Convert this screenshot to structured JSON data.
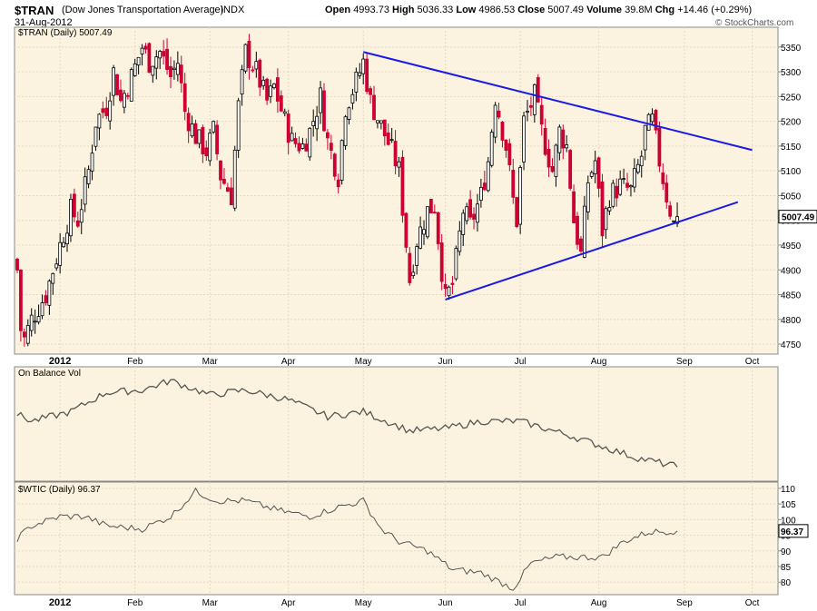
{
  "header": {
    "symbol": "$TRAN",
    "name": "(Dow Jones Transportation Average)",
    "exchange": "INDX",
    "date": "31-Aug-2012",
    "open_label": "Open",
    "open": "4993.73",
    "high_label": "High",
    "high": "5036.33",
    "low_label": "Low",
    "low": "4986.53",
    "close_label": "Close",
    "close": "5007.49",
    "volume_label": "Volume",
    "volume": "39.8M",
    "chg_label": "Chg",
    "chg": "+14.46 (+0.29%)",
    "credit": "© StockCharts.com"
  },
  "colors": {
    "panel_bg": "#fbf3df",
    "up_candle": "#000000",
    "down_candle": "#cc0033",
    "trendline": "#1a1ae6",
    "indicator_line": "#555555",
    "grid": "#e3d9c0"
  },
  "chart_data": [
    {
      "type": "candlestick",
      "label": "$TRAN (Daily) 5007.49",
      "last_value": "5007.49",
      "ylim": [
        4730,
        5390
      ],
      "yticks": [
        4750,
        4800,
        4850,
        4900,
        4950,
        5000,
        5050,
        5100,
        5150,
        5200,
        5250,
        5300,
        5350
      ],
      "xticks": [
        "2012",
        "Feb",
        "Mar",
        "Apr",
        "May",
        "Jun",
        "Jul",
        "Aug",
        "Sep",
        "Oct"
      ],
      "series_keyframes": [
        [
          "2011-12-16",
          4900
        ],
        [
          "2011-12-19",
          4780
        ],
        [
          "2011-12-20",
          4760
        ],
        [
          "2011-12-22",
          4800
        ],
        [
          "2011-12-28",
          4850
        ],
        [
          "2012-01-03",
          4950
        ],
        [
          "2012-01-06",
          5020
        ],
        [
          "2012-01-10",
          5000
        ],
        [
          "2012-01-13",
          5100
        ],
        [
          "2012-01-17",
          5200
        ],
        [
          "2012-01-20",
          5230
        ],
        [
          "2012-01-24",
          5300
        ],
        [
          "2012-01-26",
          5240
        ],
        [
          "2012-01-31",
          5290
        ],
        [
          "2012-02-03",
          5350
        ],
        [
          "2012-02-07",
          5320
        ],
        [
          "2012-02-10",
          5340
        ],
        [
          "2012-02-15",
          5290
        ],
        [
          "2012-02-17",
          5320
        ],
        [
          "2012-02-21",
          5220
        ],
        [
          "2012-02-24",
          5170
        ],
        [
          "2012-02-29",
          5140
        ],
        [
          "2012-03-02",
          5180
        ],
        [
          "2012-03-06",
          5090
        ],
        [
          "2012-03-09",
          5050
        ],
        [
          "2012-03-13",
          5230
        ],
        [
          "2012-03-15",
          5340
        ],
        [
          "2012-03-20",
          5300
        ],
        [
          "2012-03-23",
          5240
        ],
        [
          "2012-03-27",
          5270
        ],
        [
          "2012-03-30",
          5200
        ],
        [
          "2012-04-03",
          5160
        ],
        [
          "2012-04-06",
          5150
        ],
        [
          "2012-04-10",
          5180
        ],
        [
          "2012-04-13",
          5250
        ],
        [
          "2012-04-17",
          5160
        ],
        [
          "2012-04-20",
          5090
        ],
        [
          "2012-04-24",
          5230
        ],
        [
          "2012-04-27",
          5280
        ],
        [
          "2012-05-01",
          5320
        ],
        [
          "2012-05-03",
          5240
        ],
        [
          "2012-05-08",
          5190
        ],
        [
          "2012-05-11",
          5140
        ],
        [
          "2012-05-15",
          5100
        ],
        [
          "2012-05-18",
          4880
        ],
        [
          "2012-05-22",
          4960
        ],
        [
          "2012-05-25",
          5020
        ],
        [
          "2012-05-29",
          5030
        ],
        [
          "2012-05-31",
          4900
        ],
        [
          "2012-06-01",
          4840
        ],
        [
          "2012-06-05",
          4870
        ],
        [
          "2012-06-08",
          5020
        ],
        [
          "2012-06-12",
          4990
        ],
        [
          "2012-06-15",
          5050
        ],
        [
          "2012-06-19",
          5120
        ],
        [
          "2012-06-21",
          5250
        ],
        [
          "2012-06-26",
          5150
        ],
        [
          "2012-06-28",
          5040
        ],
        [
          "2012-06-29",
          5000
        ],
        [
          "2012-07-03",
          5200
        ],
        [
          "2012-07-06",
          5250
        ],
        [
          "2012-07-10",
          5180
        ],
        [
          "2012-07-13",
          5100
        ],
        [
          "2012-07-17",
          5180
        ],
        [
          "2012-07-19",
          5150
        ],
        [
          "2012-07-23",
          5000
        ],
        [
          "2012-07-25",
          4930
        ],
        [
          "2012-07-27",
          5080
        ],
        [
          "2012-07-31",
          5120
        ],
        [
          "2012-08-02",
          4980
        ],
        [
          "2012-08-06",
          5050
        ],
        [
          "2012-08-09",
          5070
        ],
        [
          "2012-08-14",
          5060
        ],
        [
          "2012-08-17",
          5130
        ],
        [
          "2012-08-20",
          5180
        ],
        [
          "2012-08-22",
          5200
        ],
        [
          "2012-08-24",
          5120
        ],
        [
          "2012-08-28",
          5050
        ],
        [
          "2012-08-30",
          4993
        ],
        [
          "2012-08-31",
          5007
        ]
      ]
    },
    {
      "type": "line",
      "label": "On Balance Vol",
      "series_keyframes": [
        [
          "2011-12-16",
          50
        ],
        [
          "2011-12-22",
          44
        ],
        [
          "2012-01-06",
          52
        ],
        [
          "2012-01-20",
          68
        ],
        [
          "2012-02-03",
          70
        ],
        [
          "2012-02-15",
          78
        ],
        [
          "2012-03-01",
          66
        ],
        [
          "2012-03-15",
          70
        ],
        [
          "2012-04-02",
          62
        ],
        [
          "2012-04-17",
          48
        ],
        [
          "2012-05-01",
          52
        ],
        [
          "2012-05-18",
          36
        ],
        [
          "2012-06-01",
          38
        ],
        [
          "2012-06-15",
          44
        ],
        [
          "2012-07-02",
          44
        ],
        [
          "2012-07-20",
          32
        ],
        [
          "2012-08-03",
          22
        ],
        [
          "2012-08-15",
          14
        ],
        [
          "2012-08-31",
          6
        ]
      ]
    },
    {
      "type": "line",
      "label": "$WTIC (Daily) 96.37",
      "last_value": "96.37",
      "ylim": [
        76,
        112
      ],
      "yticks": [
        80,
        85,
        90,
        95,
        100,
        105,
        110
      ],
      "xticks": [
        "2012",
        "Feb",
        "Mar",
        "Apr",
        "May",
        "Jun",
        "Jul",
        "Aug",
        "Sep",
        "Oct"
      ],
      "series_keyframes": [
        [
          "2011-12-16",
          94
        ],
        [
          "2011-12-22",
          98
        ],
        [
          "2012-01-03",
          101
        ],
        [
          "2012-01-12",
          101
        ],
        [
          "2012-01-20",
          98
        ],
        [
          "2012-02-03",
          97
        ],
        [
          "2012-02-15",
          101
        ],
        [
          "2012-02-24",
          109
        ],
        [
          "2012-03-05",
          106
        ],
        [
          "2012-03-15",
          106
        ],
        [
          "2012-03-28",
          103
        ],
        [
          "2012-04-10",
          101
        ],
        [
          "2012-04-20",
          104
        ],
        [
          "2012-05-01",
          106
        ],
        [
          "2012-05-08",
          97
        ],
        [
          "2012-05-15",
          93
        ],
        [
          "2012-05-25",
          90
        ],
        [
          "2012-06-05",
          84
        ],
        [
          "2012-06-15",
          83
        ],
        [
          "2012-06-28",
          78
        ],
        [
          "2012-07-05",
          86
        ],
        [
          "2012-07-16",
          88
        ],
        [
          "2012-07-25",
          88
        ],
        [
          "2012-08-02",
          88
        ],
        [
          "2012-08-10",
          93
        ],
        [
          "2012-08-21",
          96
        ],
        [
          "2012-08-31",
          96.37
        ]
      ]
    }
  ],
  "trendlines": [
    {
      "name": "upper-resistance",
      "from": [
        "2012-05-01",
        5340
      ],
      "to": [
        "2012-10-01",
        5142
      ]
    },
    {
      "name": "lower-support",
      "from": [
        "2012-06-01",
        4840
      ],
      "to": [
        "2012-09-25",
        5037
      ]
    }
  ]
}
